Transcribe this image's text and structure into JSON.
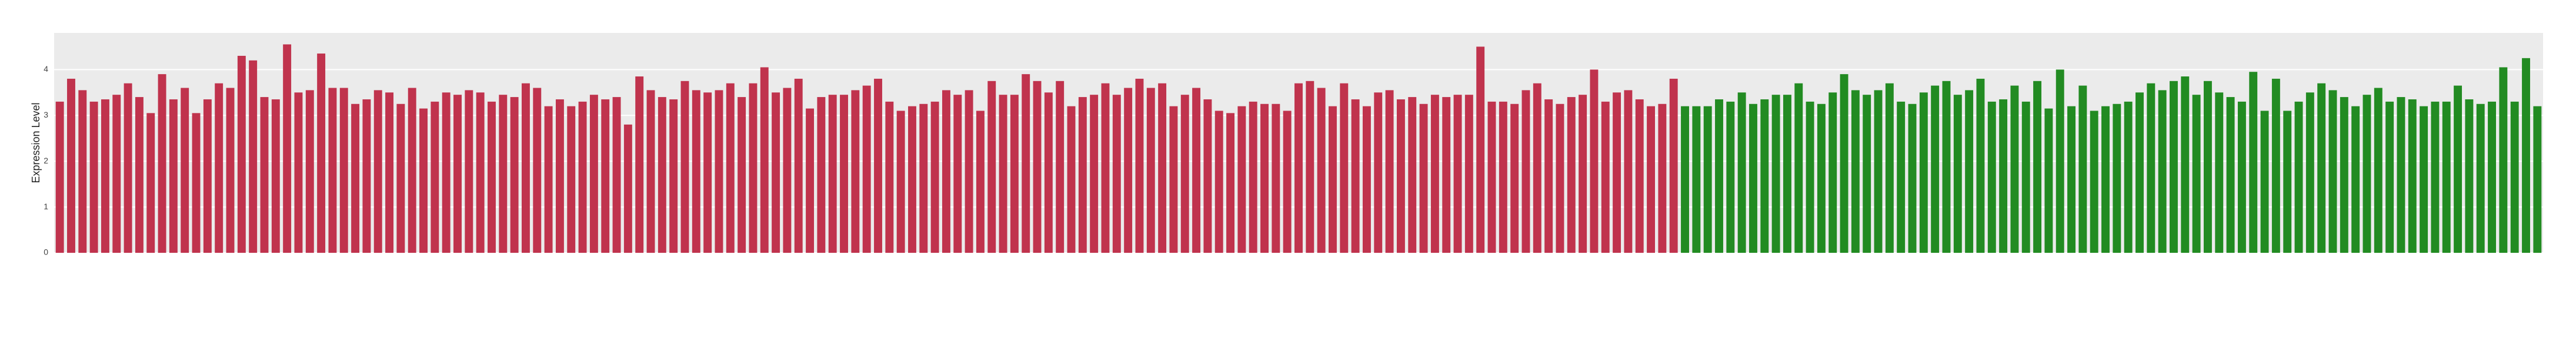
{
  "chart_data": {
    "type": "bar",
    "y_label": "Expression Level",
    "categories": [
      null,
      null,
      null,
      null,
      null,
      null,
      null,
      null,
      null,
      null,
      null,
      null,
      null,
      null,
      null,
      null,
      null,
      null,
      null,
      null,
      null,
      null,
      null,
      null,
      null,
      null,
      null,
      null,
      null,
      null,
      null,
      null,
      null,
      null,
      null,
      null,
      null,
      null,
      null,
      null,
      null,
      null,
      null,
      null,
      null,
      null,
      null,
      null,
      null,
      null,
      null,
      null,
      null,
      null,
      null,
      null,
      null,
      null,
      null,
      null,
      null,
      null,
      null,
      null,
      null,
      null,
      null,
      null,
      null,
      null,
      null,
      null,
      null,
      null,
      null,
      null,
      null,
      null,
      null,
      null,
      null,
      null,
      null,
      null,
      null,
      null,
      null,
      null,
      null,
      null,
      null,
      null,
      null,
      null,
      null,
      null,
      null,
      null,
      null,
      null,
      null,
      null,
      null,
      null,
      null,
      null,
      null,
      null,
      null,
      null,
      null,
      null,
      null,
      null,
      null,
      null,
      null,
      null,
      null,
      null,
      null,
      null,
      null,
      null,
      null,
      null,
      null,
      null,
      null,
      null,
      null,
      null,
      null,
      null,
      null,
      null,
      null,
      null,
      null,
      null,
      null,
      null,
      null,
      null,
      null,
      null,
      null,
      null,
      null,
      null,
      null,
      null,
      null,
      null,
      null,
      null,
      null,
      null,
      null,
      null,
      null,
      null,
      null,
      null,
      null,
      null,
      null,
      null,
      null,
      null,
      null,
      null,
      null,
      null,
      null,
      null,
      null,
      null,
      null,
      null,
      null,
      null,
      null,
      null,
      null,
      null,
      null,
      null,
      null,
      null,
      null,
      null,
      null,
      null,
      null,
      null,
      null,
      null,
      null,
      null,
      null,
      null,
      null,
      null,
      null,
      null,
      null,
      null,
      null,
      null,
      null,
      null,
      null,
      null,
      null,
      null,
      null,
      null,
      null
    ],
    "values": [
      3.3,
      3.8,
      3.55,
      3.3,
      3.35,
      3.45,
      3.7,
      3.4,
      3.05,
      3.9,
      3.35,
      3.6,
      3.05,
      3.35,
      3.7,
      3.6,
      4.3,
      4.2,
      3.4,
      3.35,
      4.55,
      3.5,
      3.55,
      4.35,
      3.6,
      3.6,
      3.25,
      3.35,
      3.55,
      3.5,
      3.25,
      3.6,
      3.15,
      3.3,
      3.5,
      3.45,
      3.55,
      3.5,
      3.3,
      3.45,
      3.4,
      3.7,
      3.6,
      3.2,
      3.35,
      3.2,
      3.3,
      3.45,
      3.35,
      3.4,
      2.8,
      3.85,
      3.55,
      3.4,
      3.35,
      3.75,
      3.55,
      3.5,
      3.55,
      3.7,
      3.4,
      3.7,
      4.05,
      3.5,
      3.6,
      3.8,
      3.15,
      3.4,
      3.45,
      3.45,
      3.55,
      3.65,
      3.8,
      3.3,
      3.1,
      3.2,
      3.25,
      3.3,
      3.55,
      3.45,
      3.55,
      3.1,
      3.75,
      3.45,
      3.45,
      3.9,
      3.75,
      3.5,
      3.75,
      3.2,
      3.4,
      3.45,
      3.7,
      3.45,
      3.6,
      3.8,
      3.6,
      3.7,
      3.2,
      3.45,
      3.6,
      3.35,
      3.1,
      3.05,
      3.2,
      3.3,
      3.25,
      3.25,
      3.1,
      3.7,
      3.75,
      3.6,
      3.2,
      3.7,
      3.35,
      3.2,
      3.5,
      3.55,
      3.35,
      3.4,
      3.25,
      3.45,
      3.4,
      3.45,
      3.45,
      4.5,
      3.3,
      3.3,
      3.25,
      3.55,
      3.7,
      3.35,
      3.25,
      3.4,
      3.45,
      4.0,
      3.3,
      3.5,
      3.55,
      3.35,
      3.2,
      3.25,
      3.8,
      3.2,
      3.2,
      3.2,
      3.35,
      3.3,
      3.5,
      3.25,
      3.35,
      3.45,
      3.45,
      3.7,
      3.3,
      3.25,
      3.5,
      3.9,
      3.55,
      3.45,
      3.55,
      3.7,
      3.3,
      3.25,
      3.5,
      3.65,
      3.75,
      3.45,
      3.55,
      3.8,
      3.3,
      3.35,
      3.65,
      3.3,
      3.75,
      3.15,
      4.0,
      3.2,
      3.65,
      3.1,
      3.2,
      3.25,
      3.3,
      3.5,
      3.7,
      3.55,
      3.75,
      3.85,
      3.45,
      3.75,
      3.5,
      3.4,
      3.3,
      3.95,
      3.1,
      3.8,
      3.1,
      3.3,
      3.5,
      3.7,
      3.55,
      3.4,
      3.2,
      3.45,
      3.6,
      3.3,
      3.4,
      3.35,
      3.2,
      3.3,
      3.3,
      3.65,
      3.35,
      3.25,
      3.3,
      4.05,
      3.3,
      4.25,
      3.2
    ],
    "colors": [
      "#c0334d",
      "#c0334d",
      "#c0334d",
      "#c0334d",
      "#c0334d",
      "#c0334d",
      "#c0334d",
      "#c0334d",
      "#c0334d",
      "#c0334d",
      "#c0334d",
      "#c0334d",
      "#c0334d",
      "#c0334d",
      "#c0334d",
      "#c0334d",
      "#c0334d",
      "#c0334d",
      "#c0334d",
      "#c0334d",
      "#c0334d",
      "#c0334d",
      "#c0334d",
      "#c0334d",
      "#c0334d",
      "#c0334d",
      "#c0334d",
      "#c0334d",
      "#c0334d",
      "#c0334d",
      "#c0334d",
      "#c0334d",
      "#c0334d",
      "#c0334d",
      "#c0334d",
      "#c0334d",
      "#c0334d",
      "#c0334d",
      "#c0334d",
      "#c0334d",
      "#c0334d",
      "#c0334d",
      "#c0334d",
      "#c0334d",
      "#c0334d",
      "#c0334d",
      "#c0334d",
      "#c0334d",
      "#c0334d",
      "#c0334d",
      "#c0334d",
      "#c0334d",
      "#c0334d",
      "#c0334d",
      "#c0334d",
      "#c0334d",
      "#c0334d",
      "#c0334d",
      "#c0334d",
      "#c0334d",
      "#c0334d",
      "#c0334d",
      "#c0334d",
      "#c0334d",
      "#c0334d",
      "#c0334d",
      "#c0334d",
      "#c0334d",
      "#c0334d",
      "#c0334d",
      "#c0334d",
      "#c0334d",
      "#c0334d",
      "#c0334d",
      "#c0334d",
      "#c0334d",
      "#c0334d",
      "#c0334d",
      "#c0334d",
      "#c0334d",
      "#c0334d",
      "#c0334d",
      "#c0334d",
      "#c0334d",
      "#c0334d",
      "#c0334d",
      "#c0334d",
      "#c0334d",
      "#c0334d",
      "#c0334d",
      "#c0334d",
      "#c0334d",
      "#c0334d",
      "#c0334d",
      "#c0334d",
      "#c0334d",
      "#c0334d",
      "#c0334d",
      "#c0334d",
      "#c0334d",
      "#c0334d",
      "#c0334d",
      "#c0334d",
      "#c0334d",
      "#c0334d",
      "#c0334d",
      "#c0334d",
      "#c0334d",
      "#c0334d",
      "#c0334d",
      "#c0334d",
      "#c0334d",
      "#c0334d",
      "#c0334d",
      "#c0334d",
      "#c0334d",
      "#c0334d",
      "#c0334d",
      "#c0334d",
      "#c0334d",
      "#c0334d",
      "#c0334d",
      "#c0334d",
      "#c0334d",
      "#c0334d",
      "#c0334d",
      "#c0334d",
      "#c0334d",
      "#c0334d",
      "#c0334d",
      "#c0334d",
      "#c0334d",
      "#c0334d",
      "#c0334d",
      "#c0334d",
      "#c0334d",
      "#c0334d",
      "#c0334d",
      "#c0334d",
      "#c0334d",
      "#c0334d",
      "#c0334d",
      "#c0334d",
      "#228b22",
      "#228b22",
      "#228b22",
      "#228b22",
      "#228b22",
      "#228b22",
      "#228b22",
      "#228b22",
      "#228b22",
      "#228b22",
      "#228b22",
      "#228b22",
      "#228b22",
      "#228b22",
      "#228b22",
      "#228b22",
      "#228b22",
      "#228b22",
      "#228b22",
      "#228b22",
      "#228b22",
      "#228b22",
      "#228b22",
      "#228b22",
      "#228b22",
      "#228b22",
      "#228b22",
      "#228b22",
      "#228b22",
      "#228b22",
      "#228b22",
      "#228b22",
      "#228b22",
      "#228b22",
      "#228b22",
      "#228b22",
      "#228b22",
      "#228b22",
      "#228b22",
      "#228b22",
      "#228b22",
      "#228b22",
      "#228b22",
      "#228b22",
      "#228b22",
      "#228b22",
      "#228b22",
      "#228b22",
      "#228b22",
      "#228b22",
      "#228b22",
      "#228b22",
      "#228b22",
      "#228b22",
      "#228b22",
      "#228b22",
      "#228b22",
      "#228b22",
      "#228b22",
      "#228b22",
      "#228b22",
      "#228b22",
      "#228b22",
      "#228b22",
      "#228b22",
      "#228b22",
      "#228b22",
      "#228b22",
      "#228b22",
      "#228b22",
      "#228b22",
      "#228b22",
      "#228b22",
      "#228b22",
      "#228b22",
      "#228b22"
    ],
    "ylim": [
      0,
      4.8
    ],
    "yticks": [
      0,
      1,
      2,
      3,
      4
    ],
    "grid": true
  }
}
